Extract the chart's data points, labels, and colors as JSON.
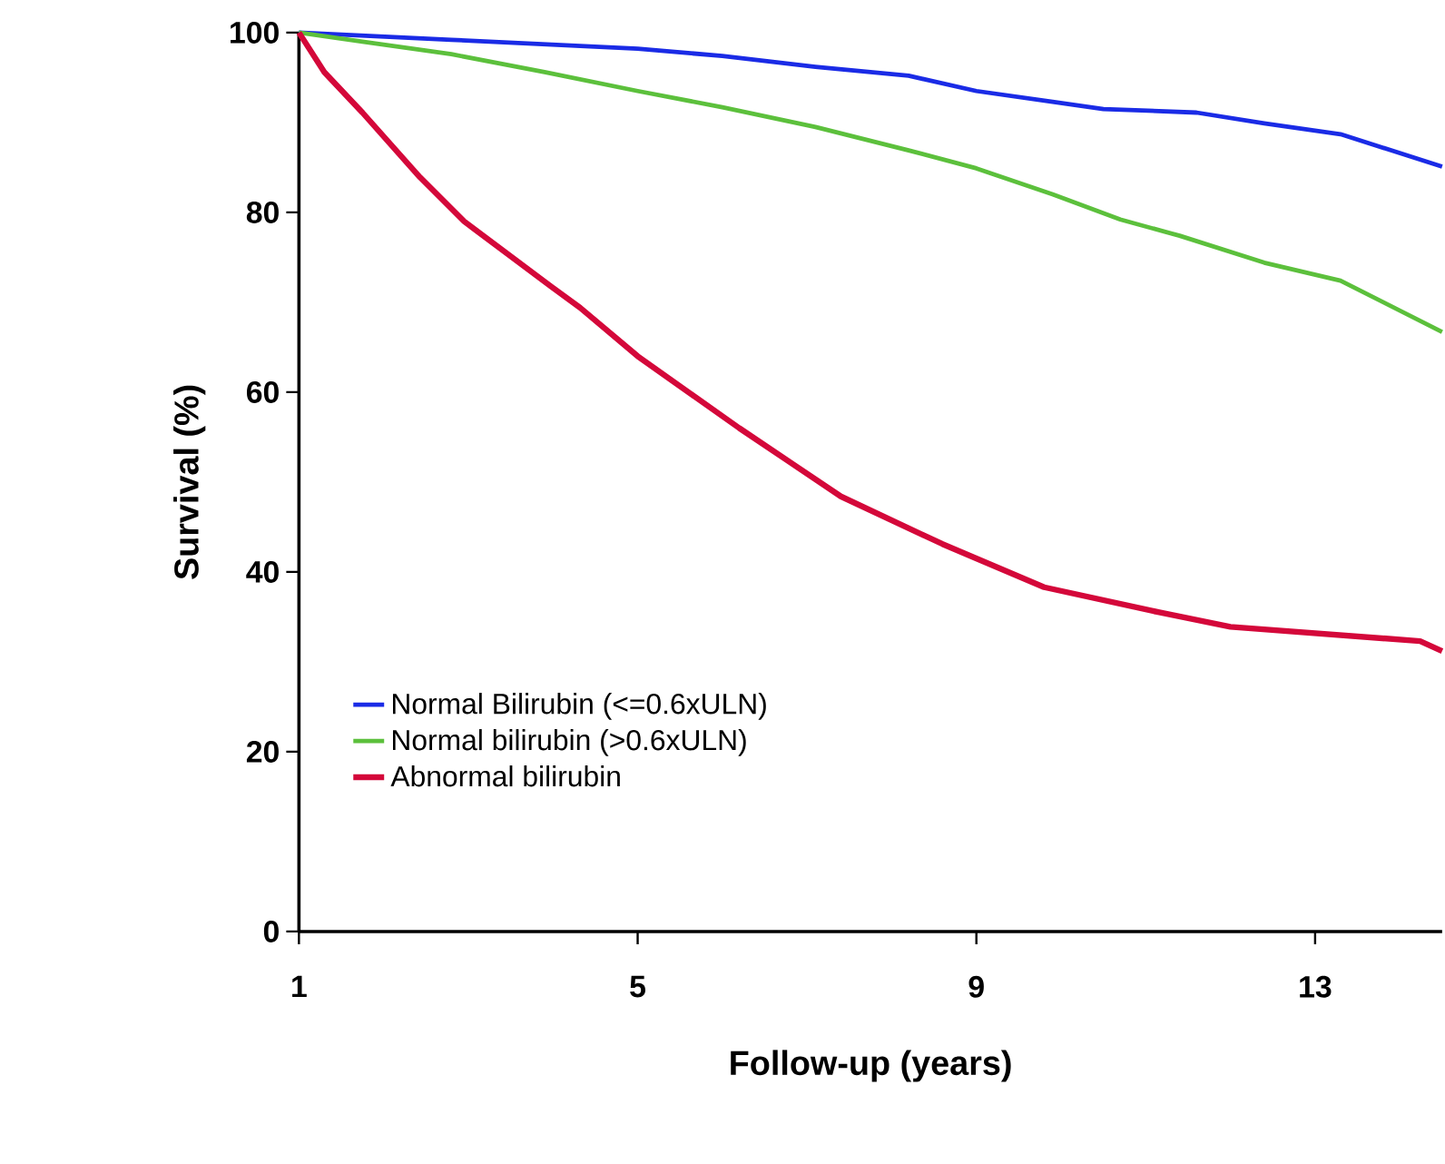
{
  "chart_data": {
    "type": "line",
    "xlabel": "Follow-up (years)",
    "ylabel": "Survival (%)",
    "xlim": [
      1,
      14.5
    ],
    "ylim": [
      0,
      100
    ],
    "xticks": [
      1,
      5,
      9,
      13
    ],
    "yticks": [
      0,
      20,
      40,
      60,
      80,
      100
    ],
    "grid": false,
    "legend": "bottom left",
    "line_style": "solid",
    "marker": "none",
    "series": [
      {
        "name": "Normal Bilirubin (<=0.6xULN)",
        "color": "#1a2be6",
        "x": [
          1,
          2.8,
          5,
          6,
          7.1,
          8.2,
          9,
          9.9,
          10.5,
          11.6,
          12.4,
          13.3,
          14.5
        ],
        "values": [
          100,
          99.2,
          98.2,
          97.4,
          96.2,
          95.2,
          93.5,
          92.3,
          91.5,
          91.1,
          89.9,
          88.7,
          85.1
        ]
      },
      {
        "name": "Normal bilirubin (>0.6xULN)",
        "color": "#5cc03c",
        "x": [
          1,
          1.75,
          2.8,
          3.9,
          5,
          6,
          7.1,
          8.2,
          9,
          9.9,
          10.7,
          11.4,
          12.4,
          13.3,
          14.5
        ],
        "values": [
          100,
          99,
          97.6,
          95.6,
          93.5,
          91.7,
          89.5,
          86.9,
          84.9,
          82,
          79.2,
          77.4,
          74.4,
          72.4,
          66.7
        ]
      },
      {
        "name": "Abnormal bilirubin",
        "color": "#d4083a",
        "x": [
          1,
          1.3,
          1.75,
          2.43,
          2.95,
          3.97,
          4.32,
          5,
          6.2,
          7.4,
          8.6,
          9.8,
          11.16,
          12,
          14.24,
          14.5
        ],
        "values": [
          100,
          95.6,
          91.1,
          83.9,
          79,
          71.8,
          69.4,
          64,
          56,
          48.4,
          43.1,
          38.3,
          35.5,
          33.9,
          32.3,
          31.2
        ]
      }
    ]
  }
}
